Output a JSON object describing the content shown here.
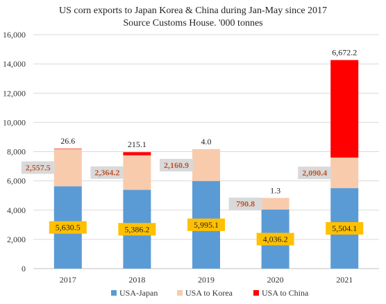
{
  "chart_data": {
    "type": "bar",
    "stacked": true,
    "title": "US corn exports to Japan Korea & China during Jan-May since 2017",
    "subtitle": "Source Customs House. '000 tonnes",
    "categories": [
      "2017",
      "2018",
      "2019",
      "2020",
      "2021"
    ],
    "series": [
      {
        "name": "USA-Japan",
        "color": "#5b9bd5",
        "values": [
          5630.5,
          5386.2,
          5995.1,
          4036.2,
          5504.1
        ],
        "labels": [
          "5,630.5",
          "5,386.2",
          "5,995.1",
          "4,036.2",
          "5,504.1"
        ]
      },
      {
        "name": "USA to Korea",
        "color": "#f8cbad",
        "values": [
          2557.5,
          2364.2,
          2160.9,
          790.8,
          2090.4
        ],
        "labels": [
          "2,557.5",
          "2,364.2",
          "2,160.9",
          "790.8",
          "2,090.4"
        ]
      },
      {
        "name": "USA to China",
        "color": "#ff0000",
        "values": [
          26.6,
          215.1,
          4.0,
          1.3,
          6672.2
        ],
        "labels": [
          "26.6",
          "215.1",
          "4.0",
          "1.3",
          "6,672.2"
        ]
      }
    ],
    "ylim": [
      0,
      16000
    ],
    "yticks": [
      "0",
      "2,000",
      "4,000",
      "6,000",
      "8,000",
      "10,000",
      "12,000",
      "14,000",
      "16,000"
    ],
    "grid": true,
    "legend": "bottom"
  }
}
